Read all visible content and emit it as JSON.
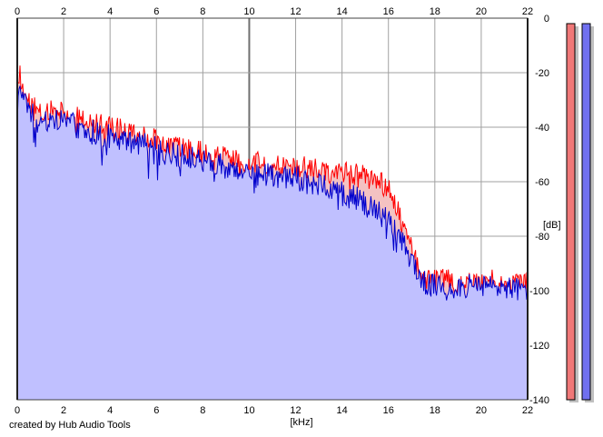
{
  "credit": "created by Hub Audio Tools",
  "chart_data": {
    "type": "area",
    "title": "",
    "xlabel": "[kHz]",
    "ylabel": "[dB]",
    "xlim": [
      0,
      22
    ],
    "ylim": [
      -140,
      0
    ],
    "x_ticks": [
      "0",
      "2",
      "4",
      "6",
      "8",
      "10",
      "12",
      "14",
      "16",
      "18",
      "20",
      "22"
    ],
    "y_ticks": [
      "0",
      "-20",
      "-40",
      "-60",
      "-80",
      "-100",
      "-120",
      "-140"
    ],
    "grid": true,
    "series": [
      {
        "color": "#ff0000",
        "fill": "#f4c2c2",
        "x": [
          0,
          0.1,
          0.3,
          0.6,
          1,
          1.5,
          2,
          2.5,
          3,
          3.5,
          4,
          4.5,
          5,
          5.5,
          6,
          6.5,
          7,
          7.5,
          8,
          8.5,
          9,
          9.5,
          10,
          10.5,
          11,
          11.5,
          12,
          12.5,
          13,
          13.5,
          14,
          14.5,
          15,
          15.5,
          16,
          16.3,
          16.6,
          17,
          17.3,
          17.6,
          18,
          18.5,
          19,
          19.5,
          20,
          20.5,
          21,
          21.5,
          22
        ],
        "values": [
          -25,
          -20,
          -27,
          -32,
          -35,
          -34,
          -33,
          -36,
          -37,
          -39,
          -40,
          -41,
          -42,
          -43,
          -44,
          -46,
          -47,
          -48,
          -49,
          -50,
          -51,
          -52,
          -52,
          -53,
          -53,
          -54,
          -54,
          -55,
          -55,
          -56,
          -56,
          -57,
          -58,
          -59,
          -62,
          -67,
          -76,
          -85,
          -92,
          -95,
          -96,
          -96,
          -97,
          -96,
          -97,
          -96,
          -97,
          -97,
          -97
        ]
      },
      {
        "color": "#0000cc",
        "fill": "#c0c0ff",
        "x": [
          0,
          0.1,
          0.3,
          0.6,
          1,
          1.5,
          2,
          2.5,
          3,
          3.5,
          4,
          4.5,
          5,
          5.5,
          6,
          6.5,
          7,
          7.5,
          8,
          8.5,
          9,
          9.5,
          10,
          10.5,
          11,
          11.5,
          12,
          12.5,
          13,
          13.5,
          14,
          14.5,
          15,
          15.5,
          16,
          16.3,
          16.6,
          17,
          17.3,
          17.6,
          18,
          18.5,
          19,
          19.5,
          20,
          20.5,
          21,
          21.5,
          22
        ],
        "values": [
          -30,
          -22,
          -30,
          -35,
          -37,
          -37,
          -36,
          -39,
          -40,
          -42,
          -43,
          -44,
          -45,
          -46,
          -47,
          -49,
          -50,
          -51,
          -52,
          -53,
          -54,
          -55,
          -56,
          -57,
          -57,
          -58,
          -58,
          -60,
          -61,
          -62,
          -63,
          -65,
          -67,
          -70,
          -74,
          -78,
          -82,
          -88,
          -94,
          -97,
          -98,
          -98,
          -98,
          -98,
          -98,
          -98,
          -98,
          -99,
          -99
        ]
      }
    ],
    "level_meters": [
      {
        "color": "#f07878",
        "level_db": -2
      },
      {
        "color": "#7070f0",
        "level_db": -2
      }
    ]
  }
}
